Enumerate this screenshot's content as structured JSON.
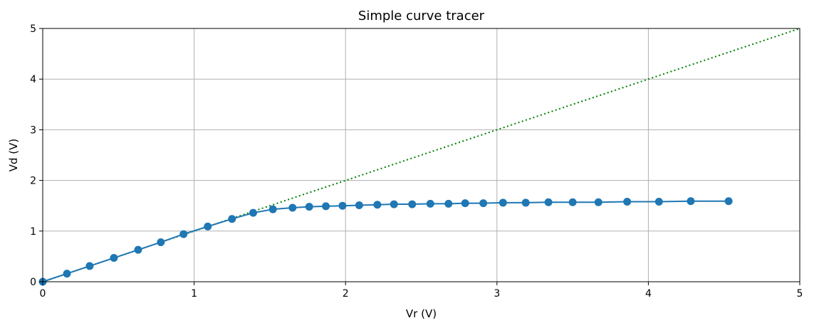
{
  "chart_data": {
    "type": "line",
    "title": "Simple curve tracer",
    "xlabel": "Vr (V)",
    "ylabel": "Vd (V)",
    "xlim": [
      0,
      5
    ],
    "ylim": [
      0,
      5
    ],
    "xticks": [
      "0",
      "1",
      "2",
      "3",
      "4",
      "5"
    ],
    "yticks": [
      "0",
      "1",
      "2",
      "3",
      "4",
      "5"
    ],
    "grid": true,
    "series": [
      {
        "style": "solid-with-markers",
        "color": "#1f77b4",
        "x": [
          0,
          0.16,
          0.31,
          0.47,
          0.63,
          0.78,
          0.93,
          1.09,
          1.25,
          1.39,
          1.52,
          1.65,
          1.76,
          1.87,
          1.98,
          2.09,
          2.21,
          2.32,
          2.44,
          2.56,
          2.68,
          2.79,
          2.91,
          3.04,
          3.19,
          3.34,
          3.5,
          3.67,
          3.86,
          4.07,
          4.28,
          4.53
        ],
        "y": [
          0,
          0.16,
          0.31,
          0.47,
          0.63,
          0.78,
          0.94,
          1.09,
          1.24,
          1.36,
          1.43,
          1.46,
          1.48,
          1.49,
          1.5,
          1.51,
          1.52,
          1.53,
          1.53,
          1.54,
          1.54,
          1.55,
          1.55,
          1.56,
          1.56,
          1.57,
          1.57,
          1.57,
          1.58,
          1.58,
          1.59,
          1.59
        ]
      },
      {
        "style": "dotted",
        "color": "#008000",
        "x": [
          0,
          5
        ],
        "y": [
          0,
          5
        ]
      }
    ]
  }
}
